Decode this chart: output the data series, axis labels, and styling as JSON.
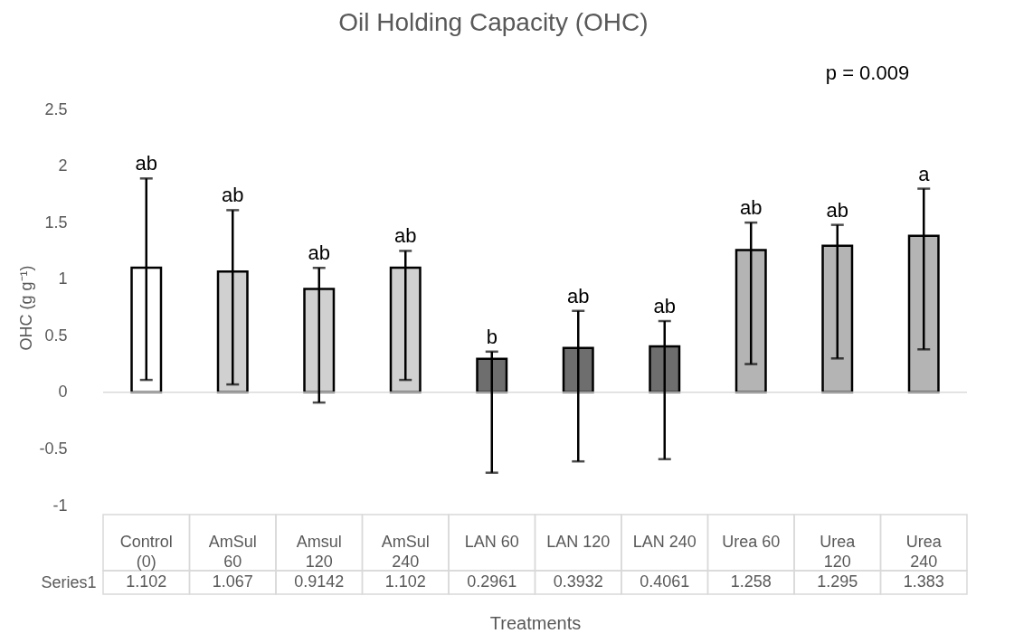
{
  "chart_data": {
    "type": "bar",
    "title": "Oil Holding Capacity (OHC)",
    "xlabel": "Treatments",
    "ylabel": "OHC (g g⁻¹)",
    "categories": [
      "Control (0)",
      "AmSul 60",
      "Amsul 120",
      "AmSul 240",
      "LAN 60",
      "LAN 120",
      "LAN 240",
      "Urea 60",
      "Urea 120",
      "Urea 240"
    ],
    "series": [
      {
        "name": "Series1",
        "values": [
          1.102,
          1.067,
          0.9142,
          1.102,
          0.2961,
          0.3932,
          0.4061,
          1.258,
          1.295,
          1.383
        ],
        "colors": [
          "#ffffff",
          "#d0d0d0",
          "#d0d0d0",
          "#d0d0d0",
          "#6e6e6e",
          "#6e6e6e",
          "#6e6e6e",
          "#b4b4b4",
          "#b4b4b4",
          "#b4b4b4"
        ],
        "errors": [
          [
            0.11,
            1.89
          ],
          [
            0.07,
            1.61
          ],
          [
            -0.09,
            1.1
          ],
          [
            0.11,
            1.25
          ],
          [
            -0.71,
            0.36
          ],
          [
            -0.61,
            0.72
          ],
          [
            -0.59,
            0.63
          ],
          [
            0.25,
            1.5
          ],
          [
            0.3,
            1.48
          ],
          [
            0.38,
            1.8
          ]
        ]
      }
    ],
    "ref_lines": [
      {
        "axis": "y",
        "value": 0,
        "color": "#d9d9d9"
      }
    ],
    "ylim": [
      -1,
      2.5
    ],
    "yticks": [
      -1,
      -0.5,
      0,
      0.5,
      1,
      1.5,
      2,
      2.5
    ],
    "grid": false,
    "legend": false,
    "data_labels": true,
    "annotations": [
      "p = 0.009",
      {
        "text": "ab",
        "x": "Control (0)",
        "y": 1.89
      },
      {
        "text": "ab",
        "x": "AmSul 60",
        "y": 1.61
      },
      {
        "text": "ab",
        "x": "Amsul 120",
        "y": 1.1
      },
      {
        "text": "ab",
        "x": "AmSul 240",
        "y": 1.25
      },
      {
        "text": "b",
        "x": "LAN 60",
        "y": 0.36
      },
      {
        "text": "ab",
        "x": "LAN 120",
        "y": 0.72
      },
      {
        "text": "ab",
        "x": "LAN 240",
        "y": 0.63
      },
      {
        "text": "ab",
        "x": "Urea 60",
        "y": 1.5
      },
      {
        "text": "ab",
        "x": "Urea 120",
        "y": 1.48
      },
      {
        "text": "a",
        "x": "Urea 240",
        "y": 1.8
      }
    ]
  }
}
